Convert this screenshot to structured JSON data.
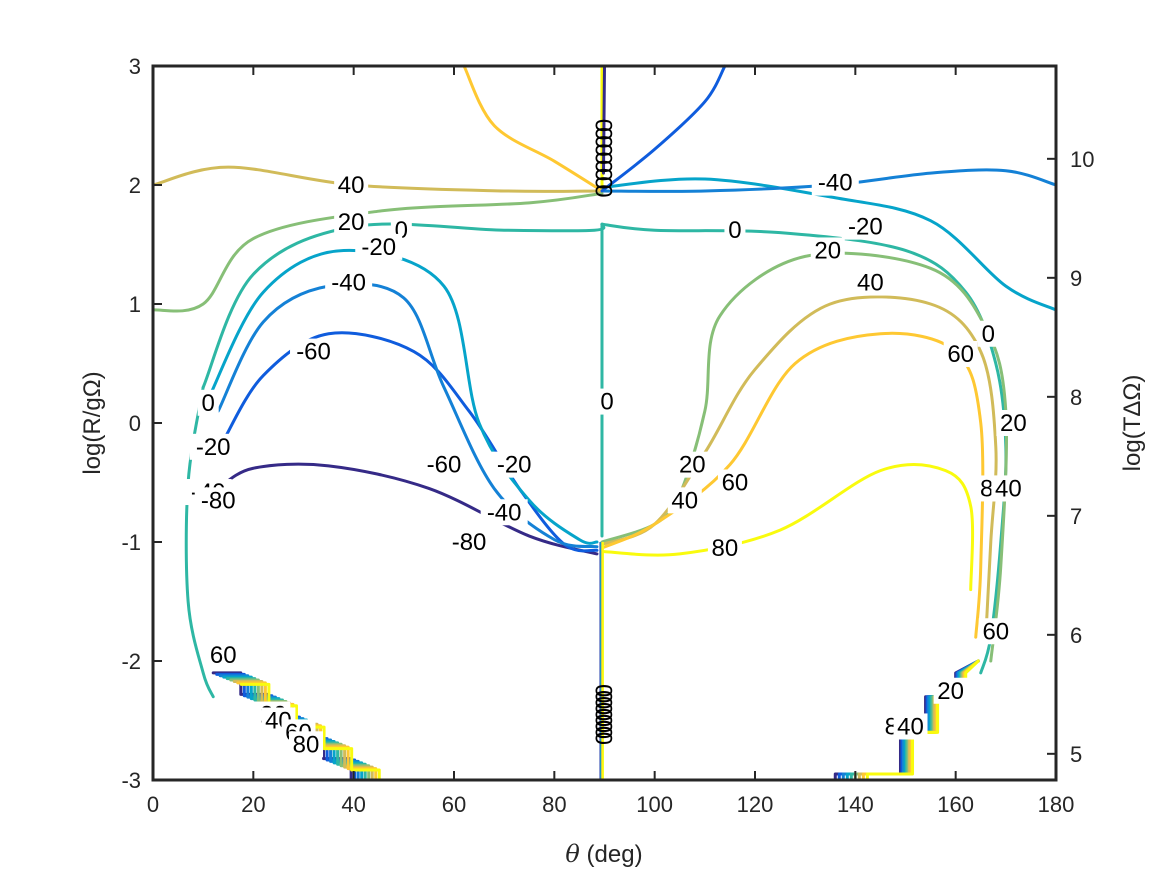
{
  "chart_data": {
    "type": "contour",
    "title": "",
    "xlabel": {
      "symbol": "θ",
      "unit": " (deg)"
    },
    "ylabel": "log(R/gΩ)",
    "ylabel_right": "log(TΔΩ)",
    "xlim": [
      0,
      180
    ],
    "ylim": [
      -3,
      3
    ],
    "ylim_right": [
      4.78,
      10.78
    ],
    "x_ticks": [
      "0",
      "20",
      "40",
      "60",
      "80",
      "100",
      "120",
      "140",
      "160",
      "180"
    ],
    "y_ticks": [
      "-3",
      "-2",
      "-1",
      "0",
      "1",
      "2",
      "3"
    ],
    "y_ticks_right": [
      "5",
      "6",
      "7",
      "8",
      "9",
      "10"
    ],
    "grid": false,
    "box": true,
    "colormap": "parula",
    "levels": [
      -80,
      -60,
      -40,
      -20,
      0,
      20,
      40,
      60,
      80
    ],
    "level_colors": {
      "-80": "#352a87",
      "-60": "#0f5cdd",
      "-40": "#1481d6",
      "-20": "#06a4ca",
      "0": "#2eb7a4",
      "20": "#87bf77",
      "40": "#d1bb59",
      "60": "#fec832",
      "80": "#f9fb0e"
    },
    "contours": [
      {
        "level": -80,
        "label": "-80",
        "points": [
          [
            13,
            -0.55
          ],
          [
            20,
            -0.38
          ],
          [
            35,
            -0.36
          ],
          [
            55,
            -0.55
          ],
          [
            75,
            -0.95
          ],
          [
            88.5,
            -1.1
          ]
        ]
      },
      {
        "level": -60,
        "label": "-60",
        "points": [
          [
            14,
            -0.15
          ],
          [
            22,
            0.4
          ],
          [
            35,
            0.75
          ],
          [
            52,
            0.6
          ],
          [
            63,
            0.1
          ],
          [
            73,
            -0.55
          ],
          [
            82,
            -1.02
          ],
          [
            88.5,
            -1.07
          ]
        ]
      },
      {
        "level": -40,
        "label": "-40",
        "points": [
          [
            13,
            0.1
          ],
          [
            22,
            0.85
          ],
          [
            35,
            1.15
          ],
          [
            50,
            1.05
          ],
          [
            58,
            0.3
          ],
          [
            68,
            -0.55
          ],
          [
            80,
            -0.98
          ],
          [
            88.5,
            -1.04
          ]
        ]
      },
      {
        "level": -20,
        "label": "-20",
        "points": [
          [
            11,
            0.2
          ],
          [
            22,
            1.1
          ],
          [
            38,
            1.45
          ],
          [
            58,
            1.15
          ],
          [
            65,
            0.0
          ],
          [
            75,
            -0.65
          ],
          [
            85,
            -0.98
          ],
          [
            88.5,
            -1.0
          ]
        ]
      },
      {
        "level": 0,
        "label": "0",
        "points": [
          [
            10,
            0.3
          ],
          [
            20,
            1.25
          ],
          [
            40,
            1.65
          ],
          [
            70,
            1.62
          ],
          [
            88,
            1.62
          ],
          [
            89.5,
            1.67
          ]
        ]
      },
      {
        "level": 0,
        "label": "0",
        "points": [
          [
            89.5,
            1.67
          ],
          [
            100,
            1.62
          ],
          [
            125,
            1.6
          ],
          [
            150,
            1.45
          ],
          [
            162,
            1.1
          ],
          [
            168,
            0.5
          ],
          [
            170,
            -0.2
          ],
          [
            169,
            -1.0
          ],
          [
            167,
            -1.8
          ],
          [
            165,
            -2.1
          ]
        ]
      },
      {
        "level": 0,
        "label": "0",
        "points": [
          [
            89.5,
            1.67
          ],
          [
            89.5,
            -0.95
          ]
        ]
      },
      {
        "level": 0,
        "label": "0",
        "points": [
          [
            10,
            0.3
          ],
          [
            7,
            -0.5
          ],
          [
            7,
            -1.5
          ],
          [
            10,
            -2.1
          ],
          [
            12,
            -2.3
          ]
        ]
      },
      {
        "level": 20,
        "label": "20",
        "points": [
          [
            0,
            0.95
          ],
          [
            10,
            1.0
          ],
          [
            20,
            1.55
          ],
          [
            45,
            1.78
          ],
          [
            75,
            1.85
          ],
          [
            89.5,
            1.93
          ]
        ]
      },
      {
        "level": 20,
        "label": "20",
        "points": [
          [
            89.5,
            -1.0
          ],
          [
            100,
            -0.85
          ],
          [
            105,
            -0.6
          ],
          [
            110,
            0.1
          ],
          [
            113,
            0.9
          ],
          [
            130,
            1.4
          ],
          [
            155,
            1.3
          ],
          [
            166,
            0.8
          ],
          [
            170,
            0.1
          ],
          [
            169,
            -1.2
          ],
          [
            167,
            -2.0
          ]
        ]
      },
      {
        "level": 40,
        "label": "40",
        "points": [
          [
            0,
            2.0
          ],
          [
            15,
            2.15
          ],
          [
            40,
            2.0
          ],
          [
            70,
            1.95
          ],
          [
            89.5,
            1.95
          ]
        ]
      },
      {
        "level": 40,
        "label": "40",
        "points": [
          [
            89.5,
            -1.02
          ],
          [
            100,
            -0.85
          ],
          [
            110,
            -0.25
          ],
          [
            120,
            0.45
          ],
          [
            135,
            1.0
          ],
          [
            155,
            1.0
          ],
          [
            165,
            0.6
          ],
          [
            168,
            -0.2
          ],
          [
            167,
            -1.0
          ],
          [
            166,
            -1.8
          ]
        ]
      },
      {
        "level": 60,
        "label": "60",
        "points": [
          [
            89.5,
            -1.05
          ],
          [
            100,
            -0.85
          ],
          [
            115,
            -0.35
          ],
          [
            128,
            0.5
          ],
          [
            145,
            0.75
          ],
          [
            160,
            0.6
          ],
          [
            165,
            0.0
          ],
          [
            165,
            -1.2
          ],
          [
            164,
            -1.8
          ]
        ]
      },
      {
        "level": 80,
        "label": "80",
        "points": [
          [
            89.5,
            -1.08
          ],
          [
            105,
            -1.1
          ],
          [
            125,
            -0.9
          ],
          [
            145,
            -0.4
          ],
          [
            158,
            -0.4
          ],
          [
            163,
            -0.7
          ],
          [
            163,
            -1.4
          ]
        ]
      },
      {
        "level": -20,
        "label": "-20",
        "points": [
          [
            89.5,
            1.98
          ],
          [
            110,
            2.05
          ],
          [
            135,
            1.9
          ],
          [
            155,
            1.7
          ],
          [
            170,
            1.15
          ],
          [
            180,
            0.95
          ]
        ]
      },
      {
        "level": -40,
        "label": "-40",
        "points": [
          [
            89.5,
            1.95
          ],
          [
            110,
            1.95
          ],
          [
            135,
            2.0
          ],
          [
            155,
            2.1
          ],
          [
            170,
            2.12
          ],
          [
            180,
            2.0
          ]
        ]
      },
      {
        "level": 60,
        "label": "60",
        "points": [
          [
            89.5,
            1.95
          ],
          [
            80,
            2.2
          ],
          [
            68,
            2.5
          ],
          [
            62,
            3.0
          ]
        ]
      },
      {
        "level": 80,
        "label": "80",
        "points": [
          [
            89.5,
            1.98
          ],
          [
            89.5,
            3.0
          ]
        ]
      },
      {
        "level": -60,
        "label": "-60",
        "points": [
          [
            89.5,
            1.95
          ],
          [
            100,
            2.3
          ],
          [
            110,
            2.7
          ],
          [
            114,
            3.0
          ]
        ]
      },
      {
        "level": -80,
        "label": "-80",
        "points": [
          [
            89.8,
            2.1
          ],
          [
            90,
            3.0
          ]
        ]
      }
    ],
    "contour_labels": [
      {
        "text": "40",
        "x": 39.5,
        "y": 2.0
      },
      {
        "text": "20",
        "x": 39.5,
        "y": 1.69
      },
      {
        "text": "0",
        "x": 49.5,
        "y": 1.62
      },
      {
        "text": "-20",
        "x": 45,
        "y": 1.48
      },
      {
        "text": "-40",
        "x": 39,
        "y": 1.18
      },
      {
        "text": "-60",
        "x": 32,
        "y": 0.6
      },
      {
        "text": "0",
        "x": 11,
        "y": 0.17
      },
      {
        "text": "-20",
        "x": 12,
        "y": -0.2
      },
      {
        "text": "-40",
        "x": 11,
        "y": -0.58
      },
      {
        "text": "-80",
        "x": 13,
        "y": -0.65
      },
      {
        "text": "-60",
        "x": 58,
        "y": -0.35
      },
      {
        "text": "-20",
        "x": 72,
        "y": -0.35
      },
      {
        "text": "-40",
        "x": 70,
        "y": -0.75
      },
      {
        "text": "-80",
        "x": 63,
        "y": -1.0
      },
      {
        "text": "0",
        "x": 90.5,
        "y": 0.18
      },
      {
        "text": "0",
        "x": 116,
        "y": 1.62
      },
      {
        "text": "-40",
        "x": 136,
        "y": 2.02
      },
      {
        "text": "-20",
        "x": 142,
        "y": 1.65
      },
      {
        "text": "20",
        "x": 134.5,
        "y": 1.45
      },
      {
        "text": "40",
        "x": 143,
        "y": 1.18
      },
      {
        "text": "0",
        "x": 166.5,
        "y": 0.75
      },
      {
        "text": "60",
        "x": 161,
        "y": 0.58
      },
      {
        "text": "20",
        "x": 171.5,
        "y": 0.0
      },
      {
        "text": "20",
        "x": 107.5,
        "y": -0.35
      },
      {
        "text": "40",
        "x": 106,
        "y": -0.65
      },
      {
        "text": "60",
        "x": 116,
        "y": -0.5
      },
      {
        "text": "80",
        "x": 114,
        "y": -1.05
      },
      {
        "text": "80",
        "x": 167.5,
        "y": -0.55
      },
      {
        "text": "40",
        "x": 170.5,
        "y": -0.55
      },
      {
        "text": "60",
        "x": 168,
        "y": -1.75
      },
      {
        "text": "60",
        "x": 14,
        "y": -1.95
      },
      {
        "text": "20",
        "x": 24,
        "y": -2.45
      },
      {
        "text": "40",
        "x": 25,
        "y": -2.5
      },
      {
        "text": "60",
        "x": 29,
        "y": -2.6
      },
      {
        "text": "80",
        "x": 30.5,
        "y": -2.7
      },
      {
        "text": "80",
        "x": 148.5,
        "y": -2.55
      },
      {
        "text": "40",
        "x": 151,
        "y": -2.55
      },
      {
        "text": "20",
        "x": 159,
        "y": -2.25
      }
    ],
    "staircases": [
      {
        "side": "left",
        "x_start": 12,
        "y_top": -2.1,
        "y_bottom": -3.0,
        "x_step": 5.5,
        "n_steps": 5
      },
      {
        "side": "right",
        "x_start": 133,
        "y_top": -2.1,
        "y_bottom": -3.0,
        "x_step": 5.5,
        "n_steps": 5
      }
    ],
    "labels_cluster_top": {
      "x": 89.5,
      "y_top": 2.5,
      "y_bottom": 1.95,
      "text": "0"
    },
    "labels_cluster_bottom": {
      "x": 89.5,
      "y_top": -2.25,
      "y_bottom": -2.65,
      "text": "0"
    }
  }
}
